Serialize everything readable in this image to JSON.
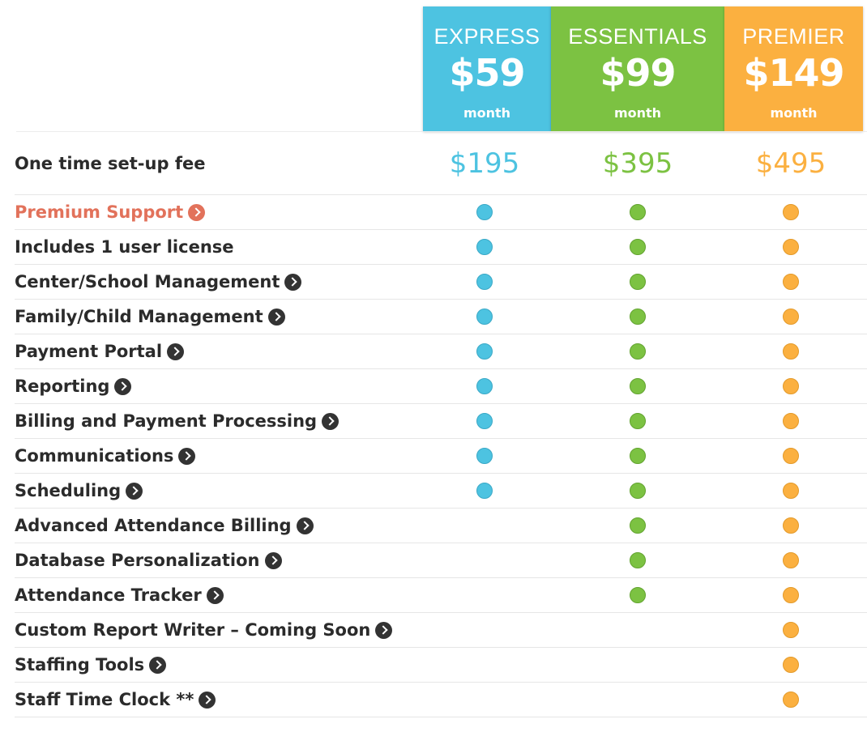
{
  "plans": [
    {
      "name": "EXPRESS",
      "price": "$59",
      "period": "month",
      "setup_fee": "$195",
      "color": "#4dc3e1"
    },
    {
      "name": "ESSENTIALS",
      "price": "$99",
      "period": "month",
      "setup_fee": "$395",
      "color": "#7cc242"
    },
    {
      "name": "PREMIER",
      "price": "$149",
      "period": "month",
      "setup_fee": "$495",
      "color": "#fbb040"
    }
  ],
  "setup_label": "One time set-up fee",
  "features": [
    {
      "label": "Premium Support",
      "arrow": true,
      "highlight": true,
      "included": [
        true,
        true,
        true
      ]
    },
    {
      "label": "Includes 1 user license",
      "arrow": false,
      "highlight": false,
      "included": [
        true,
        true,
        true
      ]
    },
    {
      "label": "Center/School Management",
      "arrow": true,
      "highlight": false,
      "included": [
        true,
        true,
        true
      ]
    },
    {
      "label": "Family/Child Management",
      "arrow": true,
      "highlight": false,
      "included": [
        true,
        true,
        true
      ]
    },
    {
      "label": "Payment Portal",
      "arrow": true,
      "highlight": false,
      "included": [
        true,
        true,
        true
      ]
    },
    {
      "label": "Reporting",
      "arrow": true,
      "highlight": false,
      "included": [
        true,
        true,
        true
      ]
    },
    {
      "label": "Billing and Payment Processing",
      "arrow": true,
      "highlight": false,
      "included": [
        true,
        true,
        true
      ]
    },
    {
      "label": "Communications",
      "arrow": true,
      "highlight": false,
      "included": [
        true,
        true,
        true
      ]
    },
    {
      "label": "Scheduling",
      "arrow": true,
      "highlight": false,
      "included": [
        true,
        true,
        true
      ]
    },
    {
      "label": "Advanced Attendance Billing",
      "arrow": true,
      "highlight": false,
      "included": [
        false,
        true,
        true
      ]
    },
    {
      "label": "Database Personalization",
      "arrow": true,
      "highlight": false,
      "included": [
        false,
        true,
        true
      ]
    },
    {
      "label": "Attendance Tracker",
      "arrow": true,
      "highlight": false,
      "included": [
        false,
        true,
        true
      ]
    },
    {
      "label": "Custom Report Writer – Coming Soon",
      "arrow": true,
      "highlight": false,
      "included": [
        false,
        false,
        true
      ]
    },
    {
      "label": "Staffing Tools",
      "arrow": true,
      "highlight": false,
      "included": [
        false,
        false,
        true
      ]
    },
    {
      "label": "Staff Time Clock **",
      "arrow": true,
      "highlight": false,
      "included": [
        false,
        false,
        true
      ]
    }
  ]
}
